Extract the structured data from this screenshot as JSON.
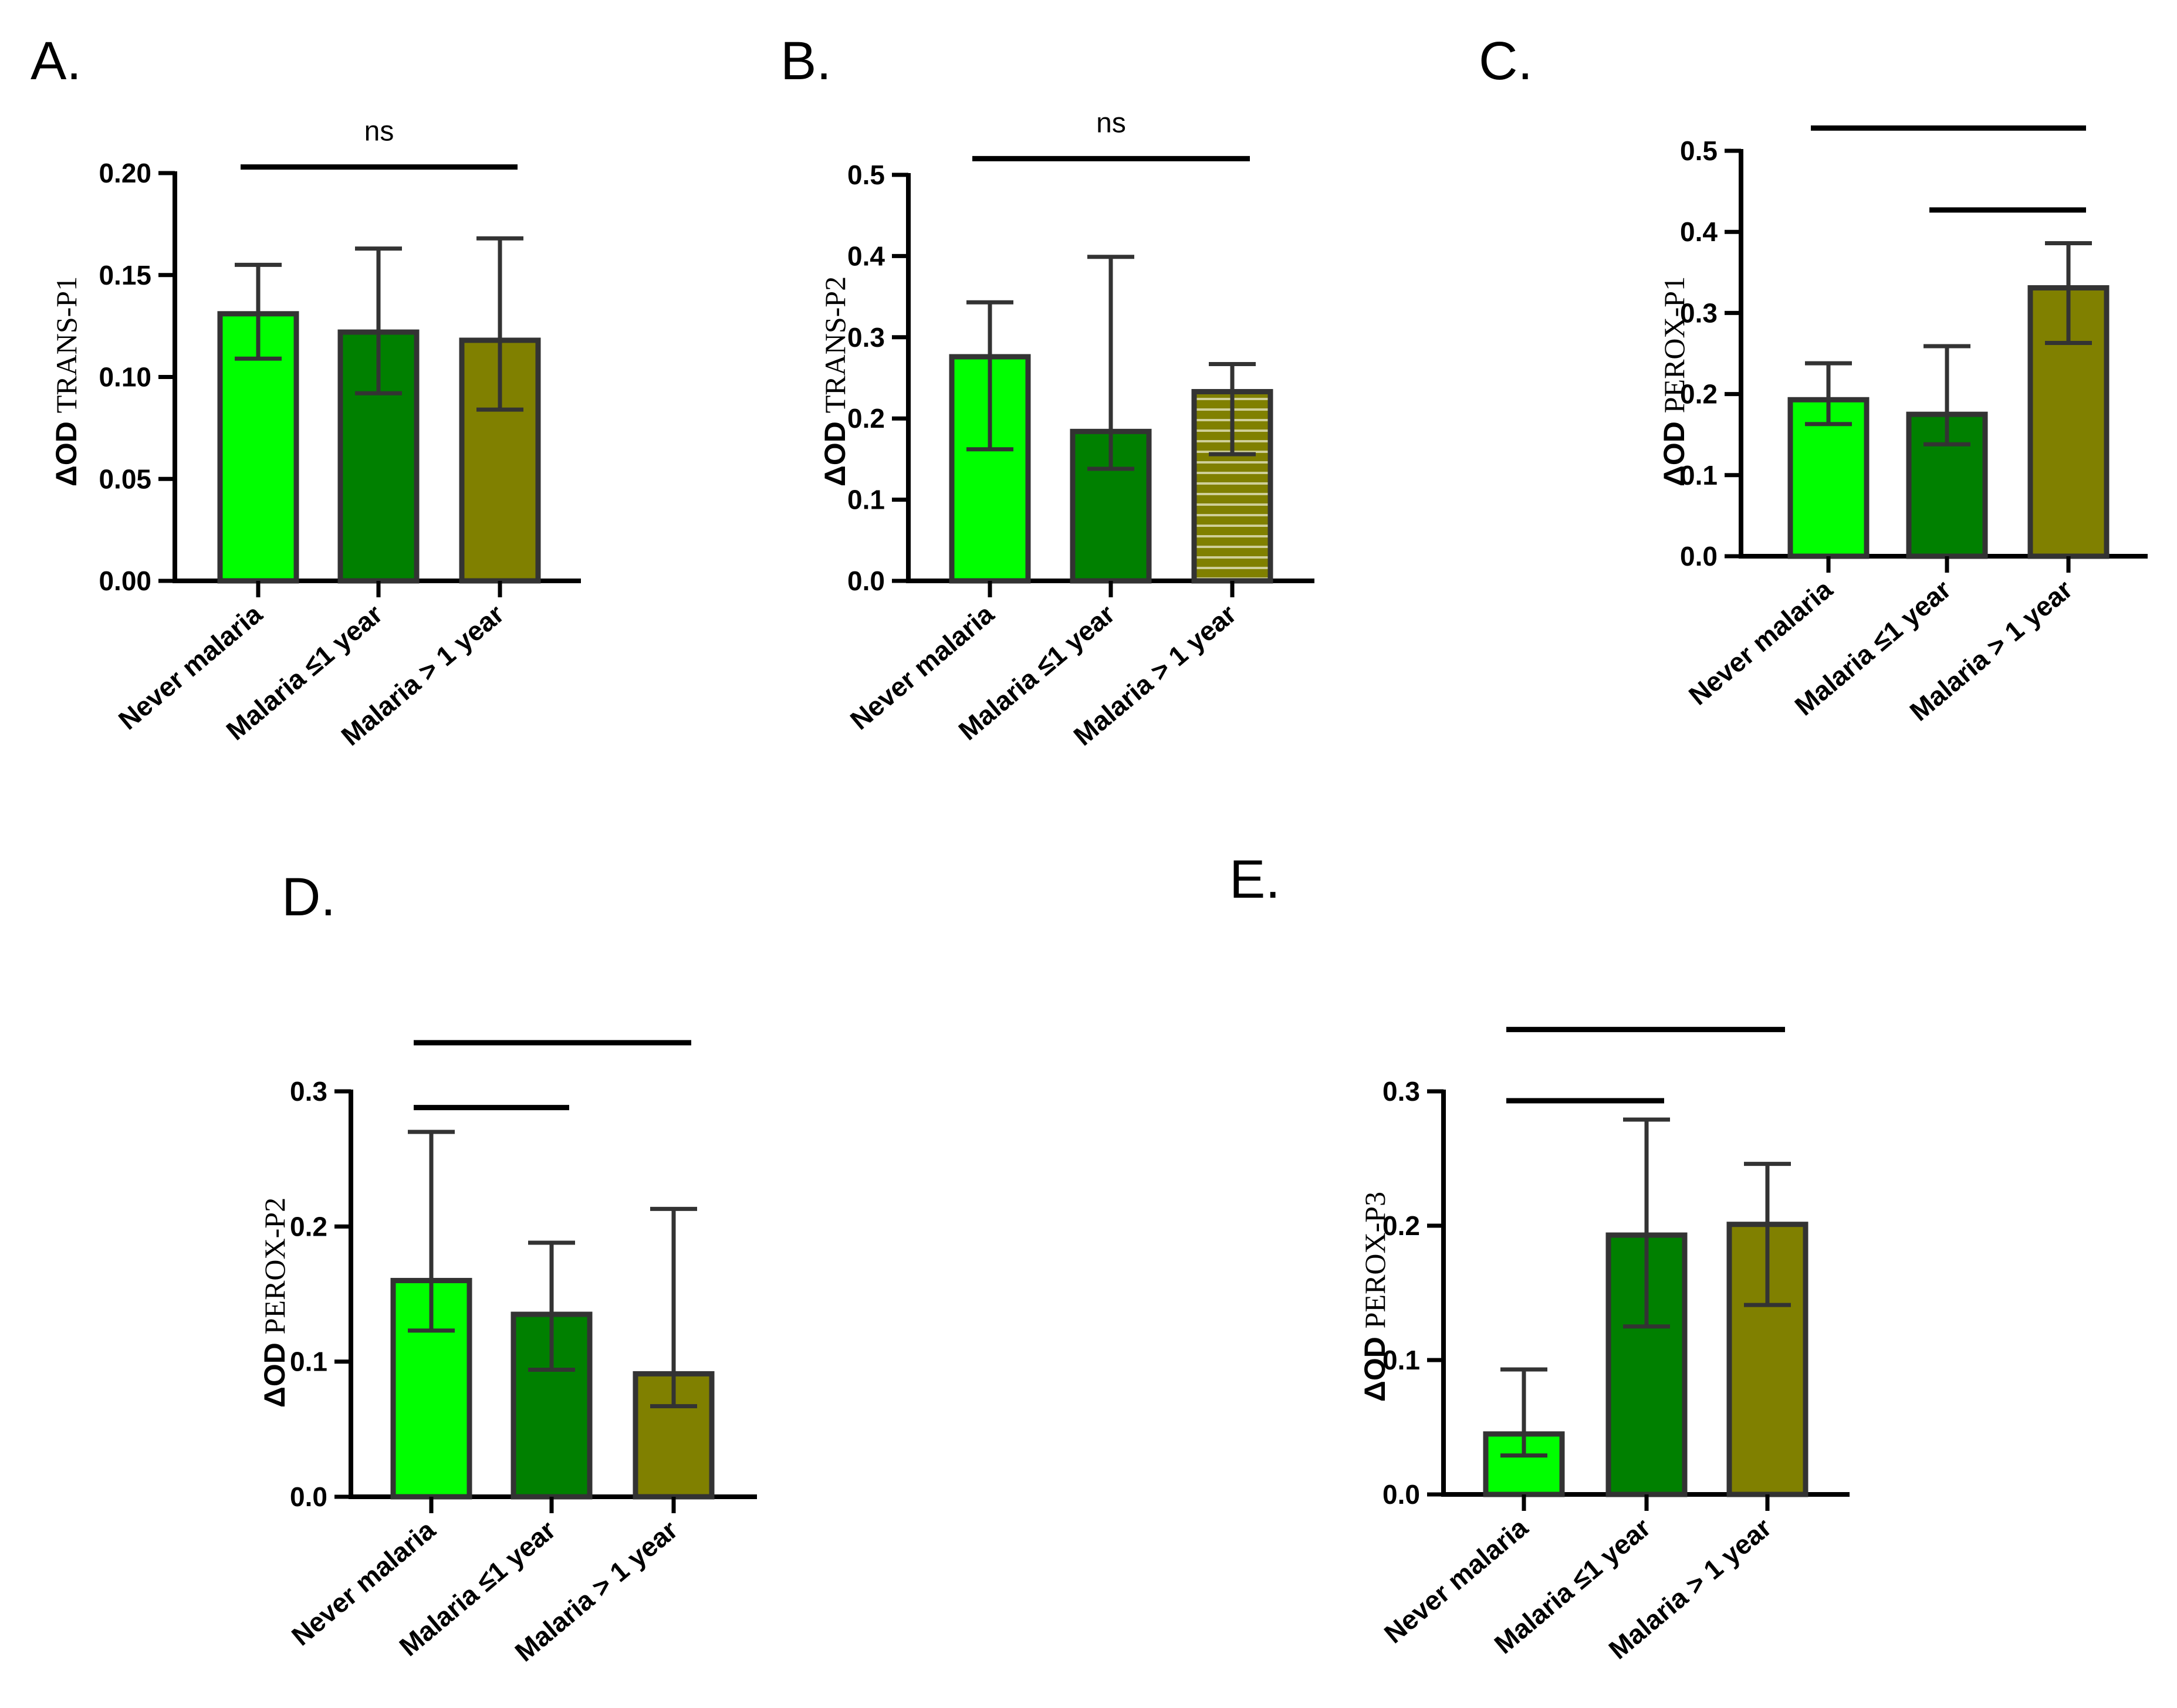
{
  "chart_data": [
    {
      "panel": "A.",
      "type": "bar",
      "categories": [
        "Never malaria",
        "Malaria ≤1 year",
        "Malaria > 1 year"
      ],
      "values": [
        0.131,
        0.122,
        0.118
      ],
      "err_low": [
        0.109,
        0.092,
        0.084
      ],
      "err_high": [
        0.155,
        0.163,
        0.168
      ],
      "colors": [
        "#00ff00",
        "#008000",
        "#808000"
      ],
      "ylabel_main": "ΔOD",
      "ylabel_sub": "TRANS-P1",
      "ylim": [
        0,
        0.2
      ],
      "yticks": [
        "0.00",
        "0.05",
        "0.10",
        "0.15",
        "0.20"
      ],
      "significance": [
        {
          "from": 0,
          "to": 2,
          "label": "ns",
          "level": 0.203
        }
      ]
    },
    {
      "panel": "B.",
      "type": "bar",
      "categories": [
        "Never malaria",
        "Malaria ≤1 year",
        "Malaria > 1 year"
      ],
      "values": [
        0.276,
        0.184,
        0.233
      ],
      "err_low": [
        0.162,
        0.138,
        0.156
      ],
      "err_high": [
        0.343,
        0.399,
        0.267
      ],
      "colors": [
        "#00ff00",
        "#008000",
        "#808000"
      ],
      "striped": [
        false,
        false,
        true
      ],
      "ylabel_main": "ΔOD",
      "ylabel_sub": "TRANS-P2",
      "ylim": [
        0,
        0.5
      ],
      "yticks": [
        "0.0",
        "0.1",
        "0.2",
        "0.3",
        "0.4",
        "0.5"
      ],
      "significance": [
        {
          "from": 0,
          "to": 2,
          "label": "ns",
          "level": 0.52
        }
      ]
    },
    {
      "panel": "C.",
      "type": "bar",
      "categories": [
        "Never malaria",
        "Malaria ≤1 year",
        "Malaria > 1 year"
      ],
      "values": [
        0.193,
        0.175,
        0.331
      ],
      "err_low": [
        0.163,
        0.138,
        0.263
      ],
      "err_high": [
        0.238,
        0.259,
        0.386
      ],
      "colors": [
        "#00ff00",
        "#008000",
        "#808000"
      ],
      "ylabel_main": "ΔOD",
      "ylabel_sub": "PEROX-P1",
      "ylim": [
        0,
        0.5
      ],
      "yticks": [
        "0.0",
        "0.1",
        "0.2",
        "0.3",
        "0.4",
        "0.5"
      ],
      "significance": [
        {
          "from": 0,
          "to": 2,
          "label": "",
          "level": 0.528
        },
        {
          "from": 1,
          "to": 2,
          "label": "",
          "level": 0.427
        }
      ]
    },
    {
      "panel": "D.",
      "type": "bar",
      "categories": [
        "Never malaria",
        "Malaria ≤1 year",
        "Malaria > 1 year"
      ],
      "values": [
        0.16,
        0.135,
        0.091
      ],
      "err_low": [
        0.123,
        0.094,
        0.067
      ],
      "err_high": [
        0.27,
        0.188,
        0.213
      ],
      "colors": [
        "#00ff00",
        "#008000",
        "#808000"
      ],
      "ylabel_main": "ΔOD",
      "ylabel_sub": "PEROX-P2",
      "ylim": [
        0,
        0.3
      ],
      "yticks": [
        "0.0",
        "0.1",
        "0.2",
        "0.3"
      ],
      "significance": [
        {
          "from": 0,
          "to": 2,
          "label": "",
          "level": 0.336
        },
        {
          "from": 0,
          "to": 1,
          "label": "",
          "level": 0.288
        }
      ]
    },
    {
      "panel": "E.",
      "type": "bar",
      "categories": [
        "Never malaria",
        "Malaria ≤1 year",
        "Malaria > 1 year"
      ],
      "values": [
        0.045,
        0.193,
        0.201
      ],
      "err_low": [
        0.029,
        0.125,
        0.141
      ],
      "err_high": [
        0.093,
        0.279,
        0.246
      ],
      "colors": [
        "#00ff00",
        "#008000",
        "#808000"
      ],
      "ylabel_main": "ΔOD",
      "ylabel_sub": "PEROX-P3",
      "ylim": [
        0,
        0.3
      ],
      "yticks": [
        "0.0",
        "0.1",
        "0.2",
        "0.3"
      ],
      "significance": [
        {
          "from": 0,
          "to": 2,
          "label": "",
          "level": 0.346
        },
        {
          "from": 0,
          "to": 1,
          "label": "",
          "level": 0.293
        }
      ]
    }
  ]
}
